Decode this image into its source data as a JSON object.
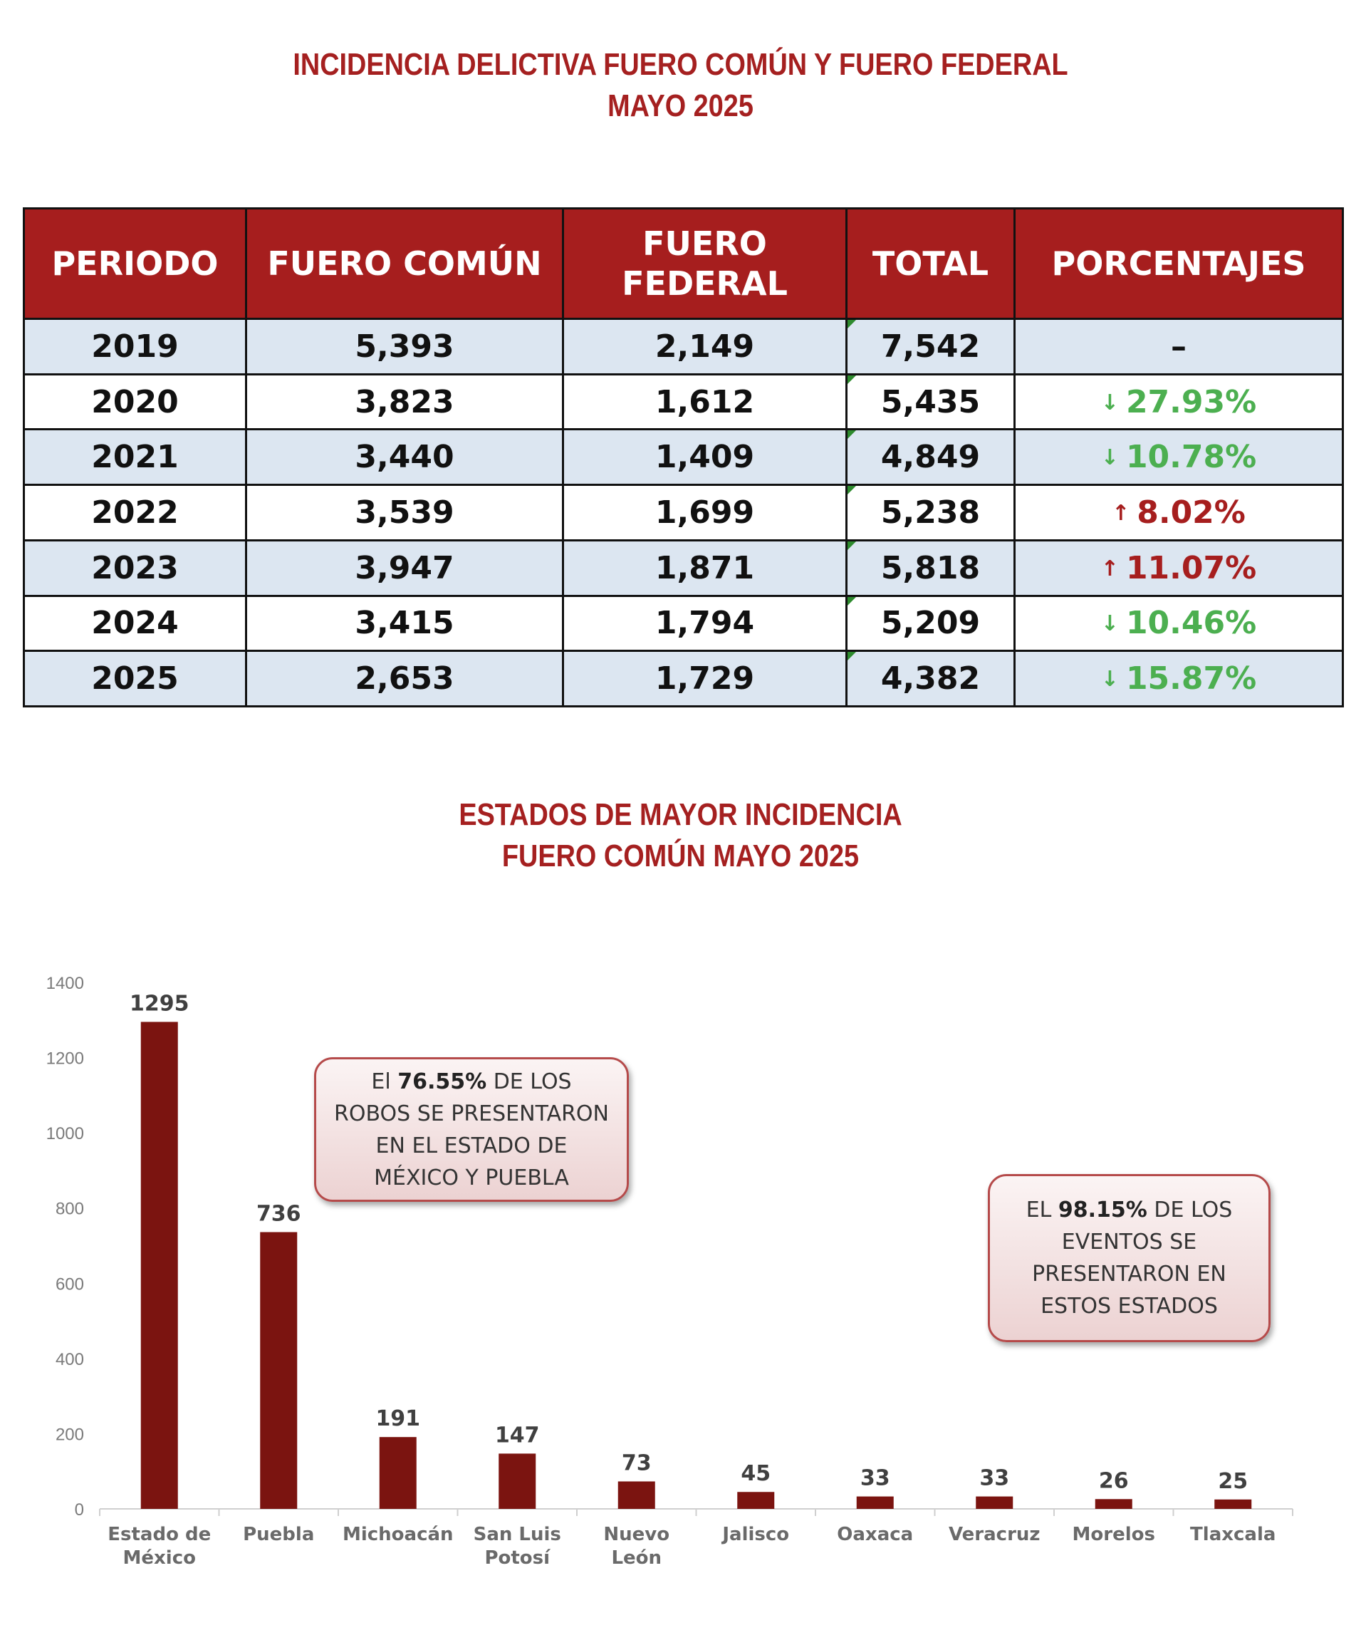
{
  "header": {
    "title_line1": "INCIDENCIA DELICTIVA FUERO COMÚN Y FUERO FEDERAL",
    "title_line2": "MAYO 2025"
  },
  "table": {
    "columns": [
      "PERIODO",
      "FUERO COMÚN",
      "FUERO FEDERAL",
      "TOTAL",
      "PORCENTAJES"
    ],
    "rows": [
      {
        "periodo": "2019",
        "comun": "5,393",
        "federal": "2,149",
        "total": "7,542",
        "pct": "–",
        "trend": "none",
        "arrow": ""
      },
      {
        "periodo": "2020",
        "comun": "3,823",
        "federal": "1,612",
        "total": "5,435",
        "pct": "27.93%",
        "trend": "down",
        "arrow": "↓"
      },
      {
        "periodo": "2021",
        "comun": "3,440",
        "federal": "1,409",
        "total": "4,849",
        "pct": "10.78%",
        "trend": "down",
        "arrow": "↓"
      },
      {
        "periodo": "2022",
        "comun": "3,539",
        "federal": "1,699",
        "total": "5,238",
        "pct": "8.02%",
        "trend": "up",
        "arrow": "↑"
      },
      {
        "periodo": "2023",
        "comun": "3,947",
        "federal": "1,871",
        "total": "5,818",
        "pct": "11.07%",
        "trend": "up",
        "arrow": "↑"
      },
      {
        "periodo": "2024",
        "comun": "3,415",
        "federal": "1,794",
        "total": "5,209",
        "pct": "10.46%",
        "trend": "down",
        "arrow": "↓"
      },
      {
        "periodo": "2025",
        "comun": "2,653",
        "federal": "1,729",
        "total": "4,382",
        "pct": "15.87%",
        "trend": "down",
        "arrow": "↓"
      }
    ]
  },
  "chart_title": {
    "line1": "ESTADOS DE MAYOR INCIDENCIA",
    "line2": "FUERO COMÚN MAYO 2025"
  },
  "callouts": {
    "one": {
      "pre": "El ",
      "bold": "76.55%",
      "post": " DE LOS  ROBOS SE PRESENTARON EN EL ESTADO DE  MÉXICO Y PUEBLA"
    },
    "two": {
      "pre": "EL ",
      "bold": "98.15%",
      "post": " DE LOS EVENTOS SE PRESENTARON EN ESTOS ESTADOS"
    }
  },
  "colors": {
    "title": "#a52020",
    "header_bg": "#a61e1e",
    "row_shade": "#dce6f1",
    "down": "#4caf50",
    "up": "#a61e1e",
    "bar": "#7b1410"
  },
  "chart_data": {
    "type": "bar",
    "title": "ESTADOS DE MAYOR INCIDENCIA FUERO COMÚN MAYO 2025",
    "categories": [
      "Estado de México",
      "Puebla",
      "Michoacán",
      "San Luis Potosí",
      "Nuevo León",
      "Jalisco",
      "Oaxaca",
      "Veracruz",
      "Morelos",
      "Tlaxcala"
    ],
    "category_lines": [
      [
        "Estado de",
        "México"
      ],
      [
        "Puebla"
      ],
      [
        "Michoacán"
      ],
      [
        "San Luis",
        "Potosí"
      ],
      [
        "Nuevo",
        "León"
      ],
      [
        "Jalisco"
      ],
      [
        "Oaxaca"
      ],
      [
        "Veracruz"
      ],
      [
        "Morelos"
      ],
      [
        "Tlaxcala"
      ]
    ],
    "values": [
      1295,
      736,
      191,
      147,
      73,
      45,
      33,
      33,
      26,
      25
    ],
    "ylim": [
      0,
      1400
    ],
    "yticks": [
      0,
      200,
      400,
      600,
      800,
      1000,
      1200,
      1400
    ],
    "xlabel": "",
    "ylabel": "",
    "grid": false,
    "legend": "none"
  }
}
